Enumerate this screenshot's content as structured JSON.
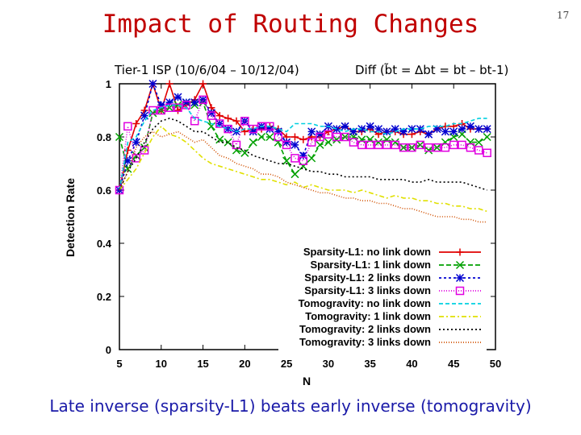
{
  "slide": {
    "title": "Impact of Routing Changes",
    "page_number": "17",
    "subtitle_left": "Tier-1 ISP (10/6/04 – 10/12/04)",
    "subtitle_right": "Diff (b̃t = ∆bt = bt – bt-1)",
    "caption": "Late inverse (sparsity-L1) beats early inverse (tomogravity)"
  },
  "chart_data": {
    "type": "line",
    "title": "",
    "xlabel": "N",
    "ylabel": "Detection Rate",
    "xlim": [
      5,
      50
    ],
    "ylim": [
      0,
      1
    ],
    "xticks": [
      "5",
      "10",
      "15",
      "20",
      "25",
      "30",
      "35",
      "40",
      "45",
      "50"
    ],
    "yticks": [
      "0",
      "0.2",
      "0.4",
      "0.6",
      "0.8",
      "1"
    ],
    "x": [
      5,
      6,
      7,
      8,
      9,
      10,
      11,
      12,
      13,
      14,
      15,
      16,
      17,
      18,
      19,
      20,
      21,
      22,
      23,
      24,
      25,
      26,
      27,
      28,
      29,
      30,
      31,
      32,
      33,
      34,
      35,
      36,
      37,
      38,
      39,
      40,
      41,
      42,
      43,
      44,
      45,
      46,
      47,
      48,
      49
    ],
    "series": [
      {
        "name": "Sparsity-L1: no link down",
        "color": "#e00000",
        "dash": "",
        "marker": "plus",
        "values": [
          0.6,
          0.75,
          0.85,
          0.9,
          1.0,
          0.9,
          1.0,
          0.9,
          0.92,
          0.94,
          1.0,
          0.91,
          0.88,
          0.87,
          0.86,
          0.82,
          0.83,
          0.83,
          0.84,
          0.83,
          0.8,
          0.8,
          0.79,
          0.8,
          0.8,
          0.82,
          0.83,
          0.84,
          0.82,
          0.82,
          0.83,
          0.81,
          0.82,
          0.82,
          0.81,
          0.81,
          0.82,
          0.81,
          0.83,
          0.84,
          0.84,
          0.85,
          0.83,
          0.83,
          0.83
        ]
      },
      {
        "name": "Sparsity-L1: 1 link down",
        "color": "#00a000",
        "dash": "6,3",
        "marker": "x",
        "values": [
          0.8,
          0.68,
          0.73,
          0.76,
          0.89,
          0.9,
          0.91,
          0.92,
          0.93,
          0.92,
          0.93,
          0.84,
          0.79,
          0.78,
          0.75,
          0.74,
          0.78,
          0.8,
          0.8,
          0.78,
          0.71,
          0.66,
          0.69,
          0.72,
          0.77,
          0.78,
          0.79,
          0.8,
          0.8,
          0.79,
          0.79,
          0.78,
          0.79,
          0.78,
          0.76,
          0.76,
          0.77,
          0.75,
          0.76,
          0.78,
          0.8,
          0.81,
          0.78,
          0.78,
          0.8
        ]
      },
      {
        "name": "Sparsity-L1: 2 links down",
        "color": "#0000d0",
        "dash": "3,3",
        "marker": "star",
        "values": [
          0.6,
          0.71,
          0.78,
          0.88,
          1.0,
          0.92,
          0.93,
          0.95,
          0.93,
          0.93,
          0.94,
          0.89,
          0.85,
          0.83,
          0.82,
          0.86,
          0.82,
          0.84,
          0.83,
          0.82,
          0.78,
          0.77,
          0.73,
          0.82,
          0.81,
          0.84,
          0.83,
          0.84,
          0.82,
          0.83,
          0.84,
          0.83,
          0.82,
          0.83,
          0.82,
          0.83,
          0.83,
          0.81,
          0.83,
          0.82,
          0.82,
          0.83,
          0.84,
          0.83,
          0.83
        ]
      },
      {
        "name": "Sparsity-L1: 3 links down",
        "color": "#e000e0",
        "dash": "1,2",
        "marker": "square",
        "values": [
          0.6,
          0.84,
          0.72,
          0.75,
          0.9,
          0.9,
          0.91,
          0.91,
          0.92,
          0.86,
          0.94,
          0.88,
          0.85,
          0.83,
          0.77,
          0.86,
          0.83,
          0.84,
          0.84,
          0.8,
          0.77,
          0.72,
          0.71,
          0.78,
          0.8,
          0.81,
          0.8,
          0.8,
          0.78,
          0.77,
          0.77,
          0.77,
          0.77,
          0.77,
          0.76,
          0.76,
          0.77,
          0.76,
          0.76,
          0.76,
          0.77,
          0.77,
          0.76,
          0.75,
          0.74
        ]
      },
      {
        "name": "Tomogravity: no link down",
        "color": "#00d0e0",
        "dash": "5,3",
        "marker": "",
        "values": [
          0.6,
          0.78,
          0.8,
          0.86,
          0.9,
          0.91,
          0.92,
          0.92,
          0.91,
          0.87,
          0.86,
          0.85,
          0.84,
          0.83,
          0.82,
          0.83,
          0.83,
          0.84,
          0.84,
          0.83,
          0.82,
          0.85,
          0.85,
          0.85,
          0.84,
          0.84,
          0.83,
          0.82,
          0.83,
          0.83,
          0.82,
          0.82,
          0.81,
          0.82,
          0.83,
          0.83,
          0.83,
          0.84,
          0.84,
          0.84,
          0.85,
          0.85,
          0.86,
          0.87,
          0.87
        ]
      },
      {
        "name": "Tomogravity: 1 link down",
        "color": "#e0e000",
        "dash": "6,3,2,3",
        "marker": "",
        "values": [
          0.6,
          0.64,
          0.68,
          0.74,
          0.8,
          0.84,
          0.81,
          0.8,
          0.78,
          0.75,
          0.72,
          0.7,
          0.69,
          0.68,
          0.67,
          0.66,
          0.65,
          0.64,
          0.64,
          0.63,
          0.62,
          0.63,
          0.61,
          0.62,
          0.61,
          0.6,
          0.6,
          0.6,
          0.59,
          0.6,
          0.59,
          0.58,
          0.57,
          0.58,
          0.57,
          0.57,
          0.56,
          0.56,
          0.55,
          0.55,
          0.54,
          0.54,
          0.53,
          0.53,
          0.52
        ]
      },
      {
        "name": "Tomogravity: 2 links down",
        "color": "#000000",
        "dash": "2,3",
        "marker": "",
        "values": [
          0.6,
          0.67,
          0.72,
          0.78,
          0.83,
          0.86,
          0.87,
          0.86,
          0.84,
          0.82,
          0.82,
          0.8,
          0.78,
          0.78,
          0.76,
          0.75,
          0.73,
          0.72,
          0.71,
          0.7,
          0.7,
          0.69,
          0.68,
          0.67,
          0.67,
          0.66,
          0.66,
          0.65,
          0.65,
          0.65,
          0.65,
          0.64,
          0.64,
          0.64,
          0.64,
          0.63,
          0.63,
          0.64,
          0.63,
          0.63,
          0.63,
          0.63,
          0.62,
          0.61,
          0.6
        ]
      },
      {
        "name": "Tomogravity: 3 links down",
        "color": "#d05000",
        "dash": "1,2",
        "marker": "",
        "values": [
          0.6,
          0.67,
          0.76,
          0.8,
          0.82,
          0.8,
          0.81,
          0.82,
          0.8,
          0.78,
          0.79,
          0.76,
          0.73,
          0.72,
          0.7,
          0.69,
          0.68,
          0.66,
          0.66,
          0.65,
          0.63,
          0.62,
          0.61,
          0.6,
          0.59,
          0.59,
          0.58,
          0.57,
          0.57,
          0.56,
          0.56,
          0.55,
          0.55,
          0.54,
          0.53,
          0.53,
          0.52,
          0.51,
          0.5,
          0.5,
          0.5,
          0.49,
          0.49,
          0.48,
          0.48
        ]
      }
    ],
    "legend_position": "bottom-right"
  }
}
